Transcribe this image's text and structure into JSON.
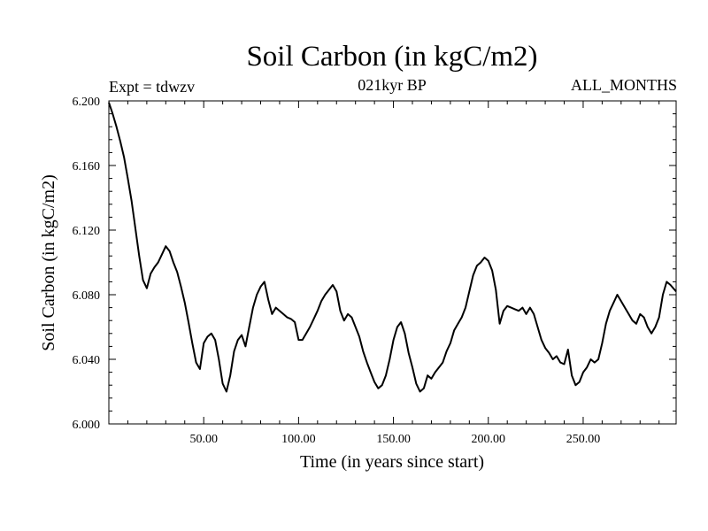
{
  "header": {
    "experiment": "Expt = tdwzv",
    "period": "021kyr BP",
    "months": "ALL_MONTHS"
  },
  "chart_data": {
    "type": "line",
    "title": "Soil Carbon (in kgC/m2)",
    "xlabel": "Time (in years since start)",
    "ylabel": "Soil Carbon (in kgC/m2)",
    "xlim": [
      0,
      299
    ],
    "ylim": [
      6.0,
      6.2
    ],
    "xticks": [
      50,
      100,
      150,
      200,
      250
    ],
    "xtick_labels": [
      "50.00",
      "100.00",
      "150.00",
      "200.00",
      "250.00"
    ],
    "yticks": [
      6.0,
      6.04,
      6.08,
      6.12,
      6.16,
      6.2
    ],
    "ytick_labels": [
      "6.000",
      "6.040",
      "6.080",
      "6.120",
      "6.160",
      "6.200"
    ],
    "grid": false,
    "line_color": "#000000",
    "series": [
      {
        "x": [
          0,
          2,
          4,
          6,
          8,
          10,
          12,
          14,
          16,
          18,
          20,
          22,
          24,
          26,
          28,
          30,
          32,
          34,
          36,
          38,
          40,
          42,
          44,
          46,
          48,
          50,
          52,
          54,
          56,
          58,
          60,
          62,
          64,
          66,
          68,
          70,
          72,
          74,
          76,
          78,
          80,
          82,
          84,
          86,
          88,
          90,
          92,
          94,
          96,
          98,
          100,
          102,
          104,
          106,
          108,
          110,
          112,
          114,
          116,
          118,
          120,
          122,
          124,
          126,
          128,
          130,
          132,
          134,
          136,
          138,
          140,
          142,
          144,
          146,
          148,
          150,
          152,
          154,
          156,
          158,
          160,
          162,
          164,
          166,
          168,
          170,
          172,
          174,
          176,
          178,
          180,
          182,
          184,
          186,
          188,
          190,
          192,
          194,
          196,
          198,
          200,
          202,
          204,
          206,
          208,
          210,
          212,
          214,
          216,
          218,
          220,
          222,
          224,
          226,
          228,
          230,
          232,
          234,
          236,
          238,
          240,
          242,
          244,
          246,
          248,
          250,
          252,
          254,
          256,
          258,
          260,
          262,
          264,
          266,
          268,
          270,
          272,
          274,
          276,
          278,
          280,
          282,
          284,
          286,
          288,
          290,
          292,
          294,
          296,
          299
        ],
        "y": [
          6.199,
          6.192,
          6.184,
          6.175,
          6.165,
          6.152,
          6.138,
          6.121,
          6.104,
          6.089,
          6.084,
          6.093,
          6.097,
          6.1,
          6.105,
          6.11,
          6.107,
          6.1,
          6.094,
          6.085,
          6.075,
          6.063,
          6.05,
          6.038,
          6.034,
          6.05,
          6.054,
          6.056,
          6.052,
          6.04,
          6.025,
          6.02,
          6.03,
          6.045,
          6.052,
          6.055,
          6.048,
          6.06,
          6.072,
          6.08,
          6.085,
          6.088,
          6.077,
          6.068,
          6.072,
          6.07,
          6.068,
          6.066,
          6.065,
          6.063,
          6.052,
          6.052,
          6.056,
          6.06,
          6.065,
          6.07,
          6.076,
          6.08,
          6.083,
          6.086,
          6.082,
          6.07,
          6.064,
          6.068,
          6.066,
          6.06,
          6.054,
          6.045,
          6.038,
          6.032,
          6.026,
          6.022,
          6.024,
          6.03,
          6.04,
          6.052,
          6.06,
          6.063,
          6.056,
          6.044,
          6.035,
          6.025,
          6.02,
          6.022,
          6.03,
          6.028,
          6.032,
          6.035,
          6.038,
          6.045,
          6.05,
          6.058,
          6.062,
          6.066,
          6.072,
          6.082,
          6.092,
          6.098,
          6.1,
          6.103,
          6.101,
          6.095,
          6.083,
          6.062,
          6.07,
          6.073,
          6.072,
          6.071,
          6.07,
          6.072,
          6.068,
          6.072,
          6.068,
          6.06,
          6.052,
          6.047,
          6.044,
          6.04,
          6.042,
          6.038,
          6.037,
          6.046,
          6.03,
          6.024,
          6.026,
          6.032,
          6.035,
          6.04,
          6.038,
          6.04,
          6.05,
          6.062,
          6.07,
          6.075,
          6.08,
          6.076,
          6.072,
          6.068,
          6.064,
          6.062,
          6.068,
          6.066,
          6.06,
          6.056,
          6.06,
          6.066,
          6.08,
          6.088,
          6.086,
          6.082
        ]
      }
    ]
  }
}
